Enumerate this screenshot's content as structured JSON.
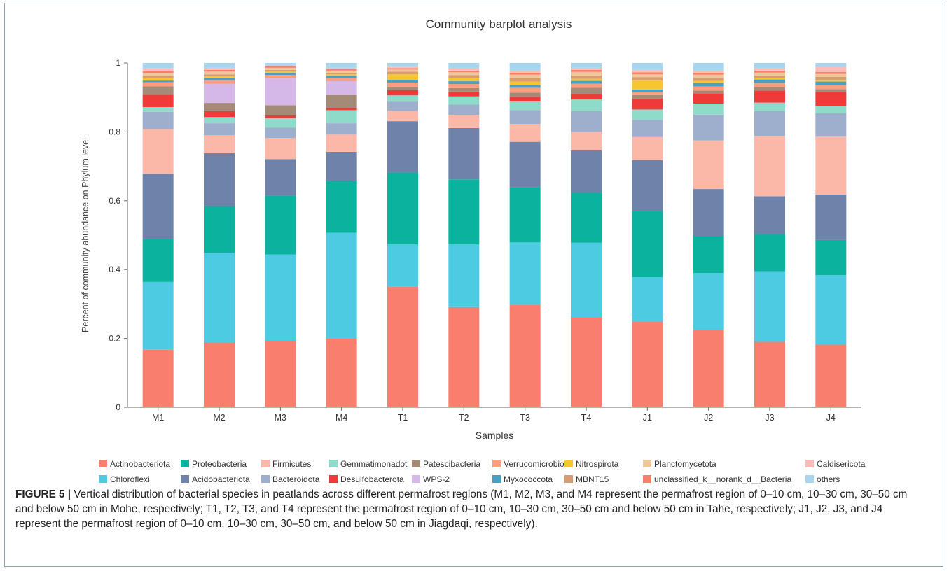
{
  "chart_data": {
    "type": "bar",
    "stacked": true,
    "title": "Community barplot analysis",
    "xlabel": "Samples",
    "ylabel": "Percent of community abundance on Phylum level",
    "ylim": [
      0,
      1
    ],
    "yticks": [
      "0",
      "0.2",
      "0.4",
      "0.6",
      "0.8",
      "1"
    ],
    "categories": [
      "M1",
      "M2",
      "M3",
      "M4",
      "T1",
      "T2",
      "T3",
      "T4",
      "J1",
      "J2",
      "J3",
      "J4"
    ],
    "legend_position": "bottom",
    "series": [
      {
        "name": "Actinobacteriota",
        "color": "#fa7e6e",
        "values": [
          0.167,
          0.187,
          0.193,
          0.201,
          0.351,
          0.291,
          0.298,
          0.262,
          0.248,
          0.224,
          0.19,
          0.182
        ]
      },
      {
        "name": "Chloroflexi",
        "color": "#4ccbe3",
        "values": [
          0.197,
          0.262,
          0.251,
          0.306,
          0.122,
          0.182,
          0.181,
          0.216,
          0.13,
          0.166,
          0.205,
          0.202
        ]
      },
      {
        "name": "Proteobacteria",
        "color": "#0bb39e",
        "values": [
          0.124,
          0.135,
          0.171,
          0.151,
          0.209,
          0.189,
          0.161,
          0.145,
          0.192,
          0.108,
          0.108,
          0.102
        ]
      },
      {
        "name": "Acidobacteriota",
        "color": "#6f82aa",
        "values": [
          0.19,
          0.154,
          0.106,
          0.084,
          0.149,
          0.149,
          0.131,
          0.123,
          0.148,
          0.136,
          0.11,
          0.132
        ]
      },
      {
        "name": "Firmicutes",
        "color": "#fbb8a8",
        "values": [
          0.13,
          0.052,
          0.061,
          0.05,
          0.03,
          0.038,
          0.052,
          0.054,
          0.067,
          0.141,
          0.175,
          0.168
        ]
      },
      {
        "name": "Bacteroidota",
        "color": "#9eafcd",
        "values": [
          0.05,
          0.035,
          0.03,
          0.033,
          0.027,
          0.03,
          0.04,
          0.06,
          0.05,
          0.075,
          0.072,
          0.068
        ]
      },
      {
        "name": "Gemmatimonadota",
        "color": "#8edbc9",
        "values": [
          0.014,
          0.018,
          0.028,
          0.038,
          0.018,
          0.024,
          0.025,
          0.034,
          0.03,
          0.032,
          0.025,
          0.022
        ]
      },
      {
        "name": "Desulfobacterota",
        "color": "#f03a3a",
        "values": [
          0.036,
          0.017,
          0.008,
          0.006,
          0.015,
          0.014,
          0.014,
          0.016,
          0.032,
          0.03,
          0.035,
          0.04
        ]
      },
      {
        "name": "Patescibacteria",
        "color": "#a38b78",
        "values": [
          0.024,
          0.024,
          0.029,
          0.038,
          0.01,
          0.01,
          0.012,
          0.018,
          0.01,
          0.008,
          0.01,
          0.008
        ]
      },
      {
        "name": "WPS-2",
        "color": "#d5b7e8",
        "values": [
          0.0,
          0.056,
          0.078,
          0.04,
          0.0,
          0.0,
          0.0,
          0.0,
          0.0,
          0.0,
          0.0,
          0.0
        ]
      },
      {
        "name": "Verrucomicrobiota",
        "color": "#fc9e7e",
        "values": [
          0.012,
          0.01,
          0.01,
          0.01,
          0.012,
          0.012,
          0.014,
          0.012,
          0.008,
          0.012,
          0.012,
          0.012
        ]
      },
      {
        "name": "Myxococcota",
        "color": "#4a9fc6",
        "values": [
          0.005,
          0.006,
          0.006,
          0.006,
          0.008,
          0.008,
          0.008,
          0.008,
          0.008,
          0.01,
          0.01,
          0.01
        ]
      },
      {
        "name": "Nitrospirota",
        "color": "#f5c632",
        "values": [
          0.008,
          0.005,
          0.004,
          0.004,
          0.016,
          0.01,
          0.01,
          0.006,
          0.026,
          0.006,
          0.004,
          0.004
        ]
      },
      {
        "name": "MBNT15",
        "color": "#d89c70",
        "values": [
          0.006,
          0.006,
          0.005,
          0.005,
          0.008,
          0.008,
          0.01,
          0.01,
          0.01,
          0.01,
          0.008,
          0.01
        ]
      },
      {
        "name": "Planctomycetota",
        "color": "#f0c79a",
        "values": [
          0.008,
          0.008,
          0.006,
          0.006,
          0.006,
          0.008,
          0.01,
          0.01,
          0.008,
          0.008,
          0.008,
          0.008
        ]
      },
      {
        "name": "unclassified_k__norank_d__Bacteria",
        "color": "#f8806a",
        "values": [
          0.005,
          0.005,
          0.004,
          0.004,
          0.004,
          0.005,
          0.006,
          0.006,
          0.006,
          0.006,
          0.006,
          0.006
        ]
      },
      {
        "name": "Caldisericota",
        "color": "#fdbcb8",
        "values": [
          0.008,
          0.006,
          0.004,
          0.004,
          0.004,
          0.006,
          0.006,
          0.006,
          0.006,
          0.006,
          0.006,
          0.014
        ]
      },
      {
        "name": "others",
        "color": "#a9d6ef",
        "values": [
          0.016,
          0.014,
          0.006,
          0.014,
          0.011,
          0.016,
          0.022,
          0.014,
          0.021,
          0.022,
          0.016,
          0.012
        ]
      }
    ],
    "legend_rows": [
      [
        "Actinobacteriota",
        "Proteobacteria",
        "Firmicutes",
        "Gemmatimonadot",
        "Patescibacteria",
        "Verrucomicrobiota",
        "Nitrospirota",
        "Planctomycetota",
        "Caldisericota"
      ],
      [
        "Chloroflexi",
        "Acidobacteriota",
        "Bacteroidota",
        "Desulfobacterota",
        "WPS-2",
        "Myxococcota",
        "MBNT15",
        "unclassified_k__norank_d__Bacteria",
        "others"
      ]
    ]
  },
  "caption": {
    "label": "FIGURE 5 |",
    "text": " Vertical distribution of bacterial species in peatlands across different permafrost regions (M1, M2, M3, and M4 represent the permafrost region of 0–10 cm, 10–30 cm, 30–50 cm and below 50 cm in Mohe, respectively; T1, T2, T3, and T4 represent the permafrost region of 0–10 cm, 10–30 cm, 30–50 cm and below 50 cm in Tahe, respectively; J1, J2, J3, and J4 represent the permafrost region of 0–10 cm, 10–30 cm, 30–50 cm, and below 50 cm in Jiagdaqi, respectively)."
  }
}
